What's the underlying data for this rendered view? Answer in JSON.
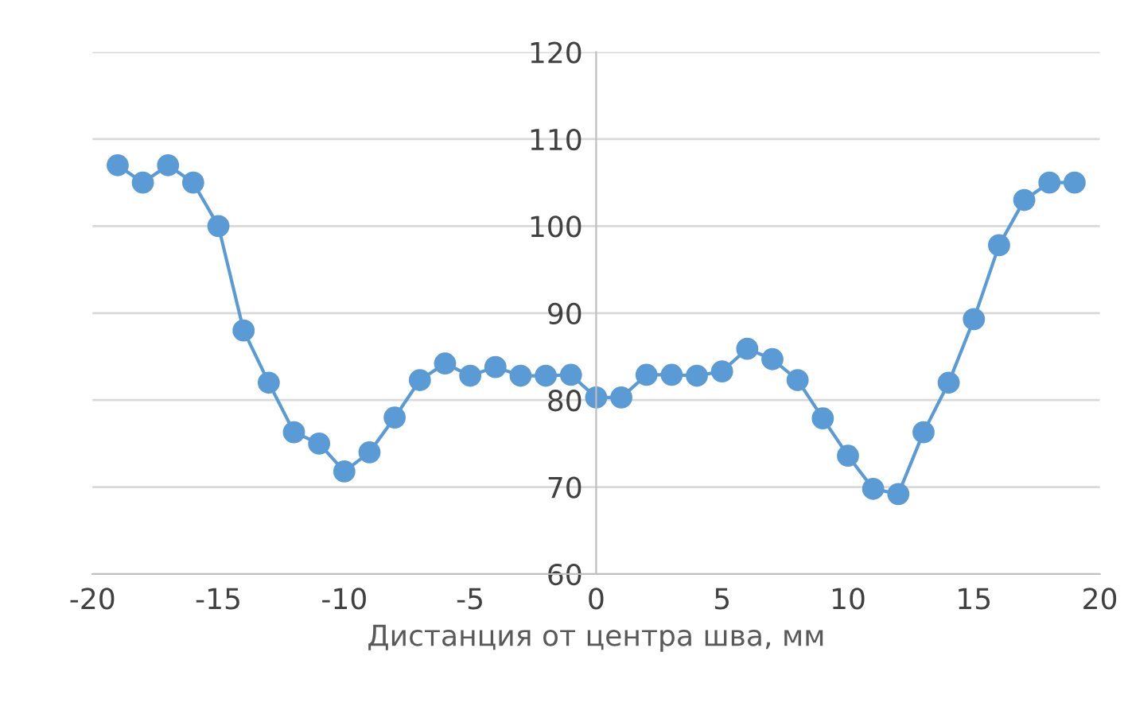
{
  "chart_data": {
    "type": "line",
    "xlabel": "Дистанция от центра шва, мм",
    "x": [
      -19,
      -18,
      -17,
      -16,
      -15,
      -14,
      -13,
      -12,
      -11,
      -10,
      -9,
      -8,
      -7,
      -6,
      -5,
      -4,
      -3,
      -2,
      -1,
      0,
      1,
      2,
      3,
      4,
      5,
      6,
      7,
      8,
      9,
      10,
      11,
      12,
      13,
      14,
      15,
      16,
      17,
      18,
      19
    ],
    "series": [
      {
        "color": "#5b9bd5",
        "values": [
          107,
          105,
          107,
          105,
          100,
          88,
          82,
          76.3,
          75,
          71.8,
          74,
          78,
          82.3,
          84.2,
          82.8,
          83.8,
          82.8,
          82.8,
          82.9,
          80.3,
          80.3,
          82.9,
          82.9,
          82.8,
          83.3,
          85.9,
          84.7,
          82.3,
          77.9,
          73.6,
          69.8,
          69.2,
          76.3,
          82,
          89.3,
          97.8,
          103,
          105,
          105
        ]
      }
    ],
    "xlim": [
      -20,
      20
    ],
    "xticks": [
      -20,
      -15,
      -10,
      -5,
      0,
      5,
      10,
      15,
      20
    ],
    "ylim": [
      60,
      120
    ],
    "yticks": [
      60,
      70,
      80,
      90,
      100,
      110,
      120
    ],
    "grid": "y",
    "marker": "circle",
    "line_style": "solid",
    "legend": false
  }
}
